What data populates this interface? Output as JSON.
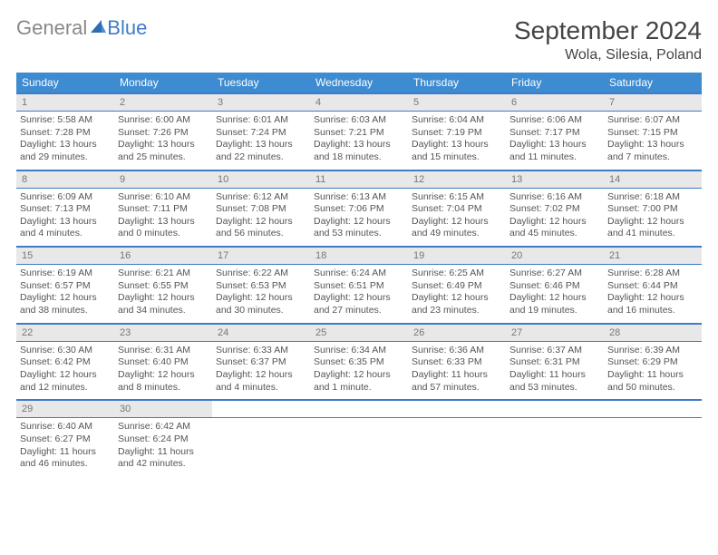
{
  "brand": {
    "part1": "General",
    "part2": "Blue"
  },
  "title": "September 2024",
  "location": "Wola, Silesia, Poland",
  "colors": {
    "header_bg": "#3d8bd0",
    "accent": "#3d7cc9",
    "daynum_bg": "#e8e8e8",
    "text": "#555555",
    "brand_gray": "#888888"
  },
  "dayNames": [
    "Sunday",
    "Monday",
    "Tuesday",
    "Wednesday",
    "Thursday",
    "Friday",
    "Saturday"
  ],
  "weeks": [
    [
      {
        "n": "1",
        "sr": "Sunrise: 5:58 AM",
        "ss": "Sunset: 7:28 PM",
        "dl": "Daylight: 13 hours and 29 minutes."
      },
      {
        "n": "2",
        "sr": "Sunrise: 6:00 AM",
        "ss": "Sunset: 7:26 PM",
        "dl": "Daylight: 13 hours and 25 minutes."
      },
      {
        "n": "3",
        "sr": "Sunrise: 6:01 AM",
        "ss": "Sunset: 7:24 PM",
        "dl": "Daylight: 13 hours and 22 minutes."
      },
      {
        "n": "4",
        "sr": "Sunrise: 6:03 AM",
        "ss": "Sunset: 7:21 PM",
        "dl": "Daylight: 13 hours and 18 minutes."
      },
      {
        "n": "5",
        "sr": "Sunrise: 6:04 AM",
        "ss": "Sunset: 7:19 PM",
        "dl": "Daylight: 13 hours and 15 minutes."
      },
      {
        "n": "6",
        "sr": "Sunrise: 6:06 AM",
        "ss": "Sunset: 7:17 PM",
        "dl": "Daylight: 13 hours and 11 minutes."
      },
      {
        "n": "7",
        "sr": "Sunrise: 6:07 AM",
        "ss": "Sunset: 7:15 PM",
        "dl": "Daylight: 13 hours and 7 minutes."
      }
    ],
    [
      {
        "n": "8",
        "sr": "Sunrise: 6:09 AM",
        "ss": "Sunset: 7:13 PM",
        "dl": "Daylight: 13 hours and 4 minutes."
      },
      {
        "n": "9",
        "sr": "Sunrise: 6:10 AM",
        "ss": "Sunset: 7:11 PM",
        "dl": "Daylight: 13 hours and 0 minutes."
      },
      {
        "n": "10",
        "sr": "Sunrise: 6:12 AM",
        "ss": "Sunset: 7:08 PM",
        "dl": "Daylight: 12 hours and 56 minutes."
      },
      {
        "n": "11",
        "sr": "Sunrise: 6:13 AM",
        "ss": "Sunset: 7:06 PM",
        "dl": "Daylight: 12 hours and 53 minutes."
      },
      {
        "n": "12",
        "sr": "Sunrise: 6:15 AM",
        "ss": "Sunset: 7:04 PM",
        "dl": "Daylight: 12 hours and 49 minutes."
      },
      {
        "n": "13",
        "sr": "Sunrise: 6:16 AM",
        "ss": "Sunset: 7:02 PM",
        "dl": "Daylight: 12 hours and 45 minutes."
      },
      {
        "n": "14",
        "sr": "Sunrise: 6:18 AM",
        "ss": "Sunset: 7:00 PM",
        "dl": "Daylight: 12 hours and 41 minutes."
      }
    ],
    [
      {
        "n": "15",
        "sr": "Sunrise: 6:19 AM",
        "ss": "Sunset: 6:57 PM",
        "dl": "Daylight: 12 hours and 38 minutes."
      },
      {
        "n": "16",
        "sr": "Sunrise: 6:21 AM",
        "ss": "Sunset: 6:55 PM",
        "dl": "Daylight: 12 hours and 34 minutes."
      },
      {
        "n": "17",
        "sr": "Sunrise: 6:22 AM",
        "ss": "Sunset: 6:53 PM",
        "dl": "Daylight: 12 hours and 30 minutes."
      },
      {
        "n": "18",
        "sr": "Sunrise: 6:24 AM",
        "ss": "Sunset: 6:51 PM",
        "dl": "Daylight: 12 hours and 27 minutes."
      },
      {
        "n": "19",
        "sr": "Sunrise: 6:25 AM",
        "ss": "Sunset: 6:49 PM",
        "dl": "Daylight: 12 hours and 23 minutes."
      },
      {
        "n": "20",
        "sr": "Sunrise: 6:27 AM",
        "ss": "Sunset: 6:46 PM",
        "dl": "Daylight: 12 hours and 19 minutes."
      },
      {
        "n": "21",
        "sr": "Sunrise: 6:28 AM",
        "ss": "Sunset: 6:44 PM",
        "dl": "Daylight: 12 hours and 16 minutes."
      }
    ],
    [
      {
        "n": "22",
        "sr": "Sunrise: 6:30 AM",
        "ss": "Sunset: 6:42 PM",
        "dl": "Daylight: 12 hours and 12 minutes."
      },
      {
        "n": "23",
        "sr": "Sunrise: 6:31 AM",
        "ss": "Sunset: 6:40 PM",
        "dl": "Daylight: 12 hours and 8 minutes."
      },
      {
        "n": "24",
        "sr": "Sunrise: 6:33 AM",
        "ss": "Sunset: 6:37 PM",
        "dl": "Daylight: 12 hours and 4 minutes."
      },
      {
        "n": "25",
        "sr": "Sunrise: 6:34 AM",
        "ss": "Sunset: 6:35 PM",
        "dl": "Daylight: 12 hours and 1 minute."
      },
      {
        "n": "26",
        "sr": "Sunrise: 6:36 AM",
        "ss": "Sunset: 6:33 PM",
        "dl": "Daylight: 11 hours and 57 minutes."
      },
      {
        "n": "27",
        "sr": "Sunrise: 6:37 AM",
        "ss": "Sunset: 6:31 PM",
        "dl": "Daylight: 11 hours and 53 minutes."
      },
      {
        "n": "28",
        "sr": "Sunrise: 6:39 AM",
        "ss": "Sunset: 6:29 PM",
        "dl": "Daylight: 11 hours and 50 minutes."
      }
    ],
    [
      {
        "n": "29",
        "sr": "Sunrise: 6:40 AM",
        "ss": "Sunset: 6:27 PM",
        "dl": "Daylight: 11 hours and 46 minutes."
      },
      {
        "n": "30",
        "sr": "Sunrise: 6:42 AM",
        "ss": "Sunset: 6:24 PM",
        "dl": "Daylight: 11 hours and 42 minutes."
      },
      null,
      null,
      null,
      null,
      null
    ]
  ]
}
